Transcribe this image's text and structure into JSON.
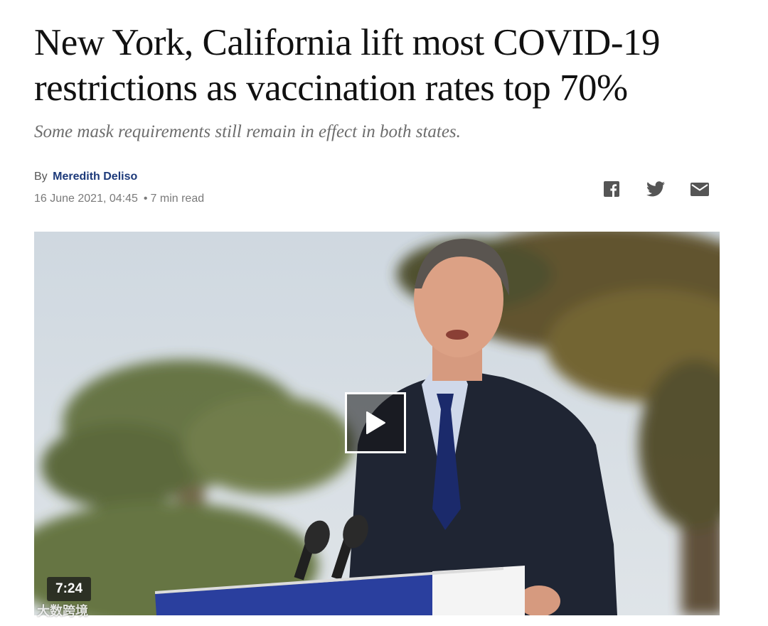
{
  "article": {
    "headline": "New York, California lift most COVID-19 restrictions as vaccination rates top 70%",
    "subheadline": "Some mask requirements still remain in effect in both states.",
    "byline_prefix": "By",
    "author": "Meredith Deliso",
    "date": "16 June 2021, 04:45",
    "separator": "•",
    "read_time": "7 min read"
  },
  "share": {
    "icons": [
      "facebook-icon",
      "twitter-icon",
      "email-icon"
    ]
  },
  "video": {
    "duration": "7:24",
    "play_icon": "play-icon"
  },
  "watermark": {
    "text": "大数跨境"
  },
  "colors": {
    "author_link": "#1d3a7a",
    "share_icon": "#555555"
  }
}
